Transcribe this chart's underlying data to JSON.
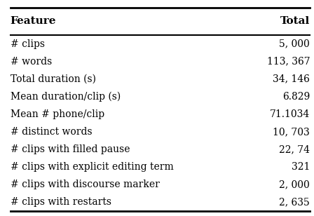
{
  "headers": [
    "Feature",
    "Total"
  ],
  "rows": [
    [
      "# clips",
      "5, 000"
    ],
    [
      "# words",
      "113, 367"
    ],
    [
      "Total duration (s)",
      "34, 146"
    ],
    [
      "Mean duration/clip (s)",
      "6.829"
    ],
    [
      "Mean # phone/clip",
      "71.1034"
    ],
    [
      "# distinct words",
      "10, 703"
    ],
    [
      "# clips with filled pause",
      "22, 74"
    ],
    [
      "# clips with explicit editing term",
      "321"
    ],
    [
      "# clips with discourse marker",
      "2, 000"
    ],
    [
      "# clips with restarts",
      "2, 635"
    ]
  ],
  "header_fontsize": 11,
  "row_fontsize": 10,
  "bg_color": "#ffffff",
  "text_color": "#000000",
  "line_color": "#000000"
}
